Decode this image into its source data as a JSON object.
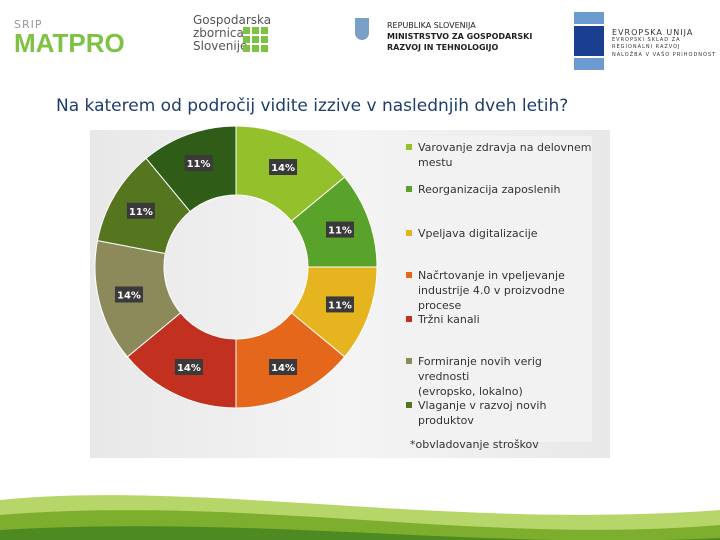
{
  "logos": {
    "matpro": {
      "small": "SRIP",
      "name": "MATPRO"
    },
    "gzs": {
      "lines": [
        "Gospodarska",
        "zbornica",
        "Slovenije"
      ]
    },
    "ministry": {
      "lines": [
        "REPUBLIKA SLOVENIJA",
        "MINISTRSTVO ZA GOSPODARSKI",
        "RAZVOJ IN TEHNOLOGIJO"
      ]
    },
    "eu": {
      "lines": [
        "EVROPSKA UNIJA",
        "EVROPSKI SKLAD ZA",
        "REGIONALNI RAZVOJ",
        "NALOŽBA V VAŠO PRIHODNOST"
      ]
    }
  },
  "question": "Na katerem od področij vidite izzive v naslednjih dveh letih?",
  "chart_data": {
    "type": "pie",
    "donut": true,
    "legend_position": "right",
    "categories": [
      "Varovanje zdravja na delovnem mestu",
      "Reorganizacija zaposlenih",
      "Vpeljava digitalizacije",
      "Načrtovanje in vpeljevanje industrije 4.0 v proizvodne procese",
      "Tržni kanali",
      "Formiranje novih verig vrednosti (evropsko, lokalno)",
      "Vlaganje v razvoj novih produktov",
      "*obvladovanje stroškov"
    ],
    "values": [
      14,
      11,
      11,
      14,
      14,
      14,
      11,
      11
    ],
    "data_labels": [
      "14%",
      "11%",
      "11%",
      "14%",
      "14%",
      "14%",
      "11%",
      "11%"
    ],
    "colors": [
      "#93c02b",
      "#5aa32a",
      "#e6b41e",
      "#e5671c",
      "#c2301f",
      "#8c8a5b",
      "#55761f",
      "#2f5c17"
    ],
    "legend_lines": [
      [
        "Varovanje zdravja na delovnem",
        "mestu"
      ],
      [
        "Reorganizacija zaposlenih"
      ],
      [
        "Vpeljava digitalizacije"
      ],
      [
        "Načrtovanje in vpeljevanje",
        "industrije 4.0 v proizvodne",
        "procese"
      ],
      [
        "Tržni kanali"
      ],
      [
        "Formiranje novih verig vrednosti",
        "(evropsko, lokalno)"
      ],
      [
        "Vlaganje v razvoj novih",
        "produktov"
      ]
    ],
    "footnote": "*obvladovanje stroškov"
  }
}
